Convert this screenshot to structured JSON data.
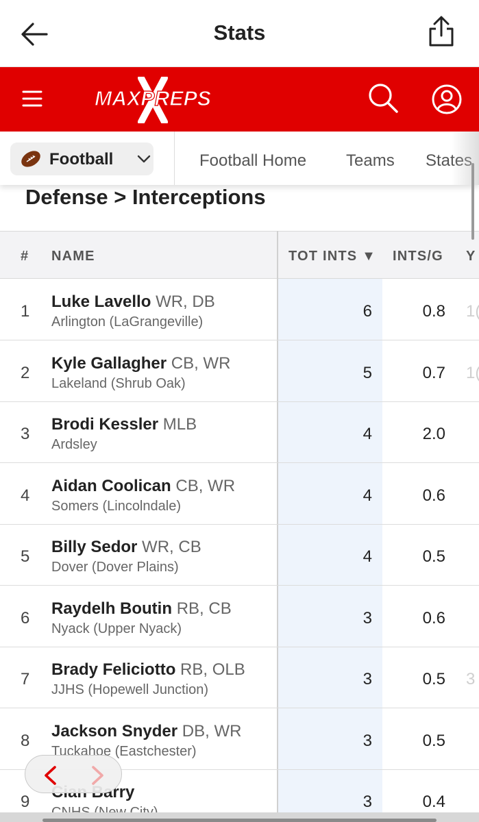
{
  "header": {
    "title": "Stats"
  },
  "brand": {
    "logo_text": "MAXPREPS",
    "color": "#e00000"
  },
  "subnav": {
    "sport_label": "Football",
    "links": [
      "Football Home",
      "Teams",
      "States"
    ]
  },
  "section": {
    "title": "Defense > Interceptions"
  },
  "table": {
    "columns": {
      "rank": "#",
      "name": "NAME",
      "tot_ints": "TOT INTS ▼",
      "ints_per_game": "INTS/G",
      "yds_partial": "Y"
    },
    "rows": [
      {
        "rank": "1",
        "name": "Luke Lavello",
        "pos": "WR, DB",
        "school": "Arlington (LaGrangeville)",
        "tot_ints": "6",
        "ints_per_game": "0.8",
        "yds_partial": "1("
      },
      {
        "rank": "2",
        "name": "Kyle Gallagher",
        "pos": "CB, WR",
        "school": "Lakeland (Shrub Oak)",
        "tot_ints": "5",
        "ints_per_game": "0.7",
        "yds_partial": "1("
      },
      {
        "rank": "3",
        "name": "Brodi Kessler",
        "pos": "MLB",
        "school": "Ardsley",
        "tot_ints": "4",
        "ints_per_game": "2.0",
        "yds_partial": ""
      },
      {
        "rank": "4",
        "name": "Aidan Coolican",
        "pos": "CB, WR",
        "school": "Somers (Lincolndale)",
        "tot_ints": "4",
        "ints_per_game": "0.6",
        "yds_partial": ""
      },
      {
        "rank": "5",
        "name": "Billy Sedor",
        "pos": "WR, CB",
        "school": "Dover (Dover Plains)",
        "tot_ints": "4",
        "ints_per_game": "0.5",
        "yds_partial": ""
      },
      {
        "rank": "6",
        "name": "Raydelh Boutin",
        "pos": "RB, CB",
        "school": "Nyack (Upper Nyack)",
        "tot_ints": "3",
        "ints_per_game": "0.6",
        "yds_partial": ""
      },
      {
        "rank": "7",
        "name": "Brady Feliciotto",
        "pos": "RB, OLB",
        "school": "JJHS (Hopewell Junction)",
        "tot_ints": "3",
        "ints_per_game": "0.5",
        "yds_partial": "3"
      },
      {
        "rank": "8",
        "name": "Jackson Snyder",
        "pos": "DB, WR",
        "school": "Tuckahoe (Eastchester)",
        "tot_ints": "3",
        "ints_per_game": "0.5",
        "yds_partial": ""
      },
      {
        "rank": "9",
        "name": "Cian Barry",
        "pos": "",
        "school": "CNHS (New City)",
        "tot_ints": "3",
        "ints_per_game": "0.4",
        "yds_partial": ""
      }
    ]
  }
}
